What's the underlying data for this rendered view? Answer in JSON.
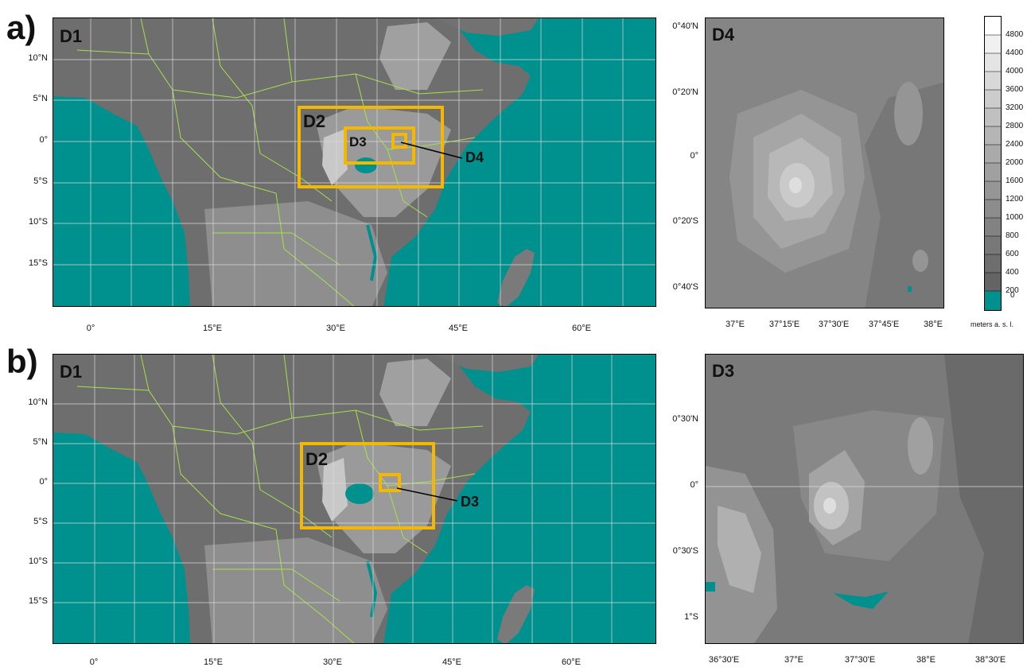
{
  "panels": {
    "a": {
      "letter": "a)",
      "main_domain": "D1",
      "nested_domains": [
        "D2",
        "D3",
        "D4"
      ],
      "callout": "D4",
      "lat_ticks": [
        "10°N",
        "5°N",
        "0°",
        "5°S",
        "10°S",
        "15°S"
      ],
      "lon_ticks": [
        "0°",
        "15°E",
        "30°E",
        "45°E",
        "60°E"
      ],
      "inset": {
        "domain": "D4",
        "lat_ticks": [
          "0°40'N",
          "0°20'N",
          "0°",
          "0°20'S",
          "0°40'S"
        ],
        "lon_ticks": [
          "37°E",
          "37°15'E",
          "37°30'E",
          "37°45'E",
          "38°E"
        ]
      }
    },
    "b": {
      "letter": "b)",
      "main_domain": "D1",
      "nested_domains": [
        "D2",
        "D3"
      ],
      "callout": "D3",
      "lat_ticks": [
        "10°N",
        "5°N",
        "0°",
        "5°S",
        "10°S",
        "15°S"
      ],
      "lon_ticks": [
        "0°",
        "15°E",
        "30°E",
        "45°E",
        "60°E"
      ],
      "inset": {
        "domain": "D3",
        "lat_ticks": [
          "0°30'N",
          "0°",
          "0°30'S",
          "1°S"
        ],
        "lon_ticks": [
          "36°30'E",
          "37°E",
          "37°30'E",
          "38°E",
          "38°30'E"
        ]
      }
    }
  },
  "colorbar": {
    "levels": [
      "4800",
      "4400",
      "4000",
      "3600",
      "3200",
      "2800",
      "2400",
      "2000",
      "1600",
      "1200",
      "1000",
      "800",
      "600",
      "400",
      "200",
      "0"
    ],
    "unit_label": "meters a. s. l."
  },
  "colors": {
    "water": "#00918f",
    "domain_box": "#f5b800",
    "borders": "#a6e04a",
    "grid": "#d9d9d9"
  }
}
